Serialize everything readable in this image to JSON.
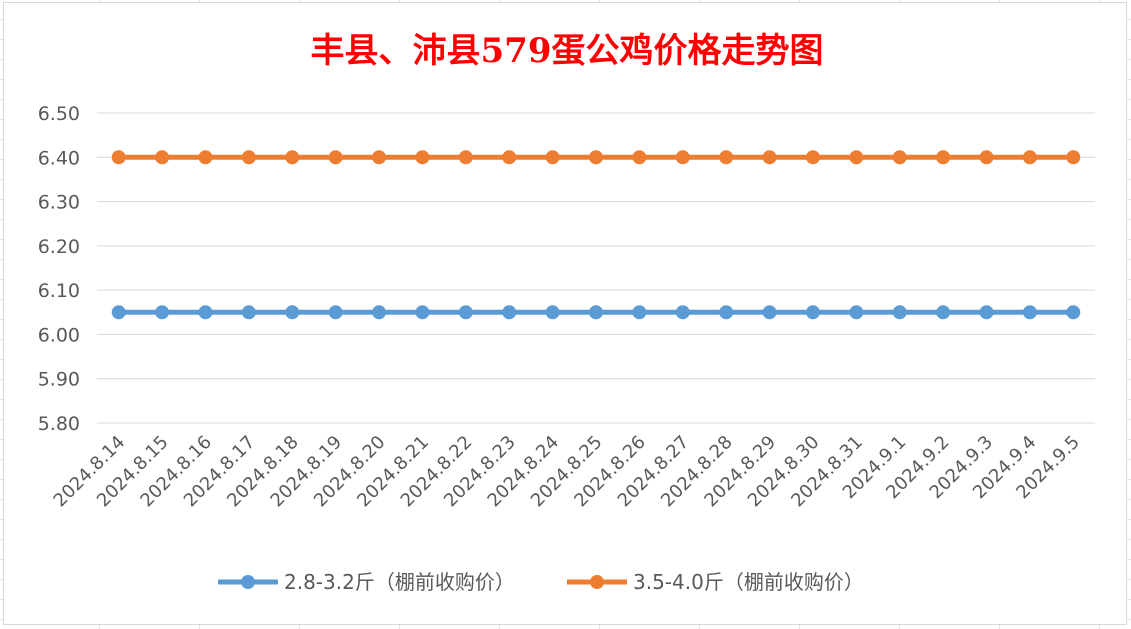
{
  "chart_data": {
    "type": "line",
    "title": "丰县、沛县579蛋公鸡价格走势图",
    "xlabel": "",
    "ylabel": "",
    "ylim": [
      5.8,
      6.5
    ],
    "yticks": [
      "6.50",
      "6.40",
      "6.30",
      "6.20",
      "6.10",
      "6.00",
      "5.90",
      "5.80"
    ],
    "grid": true,
    "legend_position": "bottom",
    "categories": [
      "2024.8.14",
      "2024.8.15",
      "2024.8.16",
      "2024.8.17",
      "2024.8.18",
      "2024.8.19",
      "2024.8.20",
      "2024.8.21",
      "2024.8.22",
      "2024.8.23",
      "2024.8.24",
      "2024.8.25",
      "2024.8.26",
      "2024.8.27",
      "2024.8.28",
      "2024.8.29",
      "2024.8.30",
      "2024.8.31",
      "2024.9.1",
      "2024.9.2",
      "2024.9.3",
      "2024.9.4",
      "2024.9.5"
    ],
    "series": [
      {
        "name": "2.8-3.2斤（棚前收购价）",
        "color": "#5b9bd5",
        "values": [
          6.05,
          6.05,
          6.05,
          6.05,
          6.05,
          6.05,
          6.05,
          6.05,
          6.05,
          6.05,
          6.05,
          6.05,
          6.05,
          6.05,
          6.05,
          6.05,
          6.05,
          6.05,
          6.05,
          6.05,
          6.05,
          6.05,
          6.05
        ]
      },
      {
        "name": "3.5-4.0斤（棚前收购价）",
        "color": "#ed7d31",
        "values": [
          6.4,
          6.4,
          6.4,
          6.4,
          6.4,
          6.4,
          6.4,
          6.4,
          6.4,
          6.4,
          6.4,
          6.4,
          6.4,
          6.4,
          6.4,
          6.4,
          6.4,
          6.4,
          6.4,
          6.4,
          6.4,
          6.4,
          6.4
        ]
      }
    ],
    "title_color": "#ff0000"
  }
}
